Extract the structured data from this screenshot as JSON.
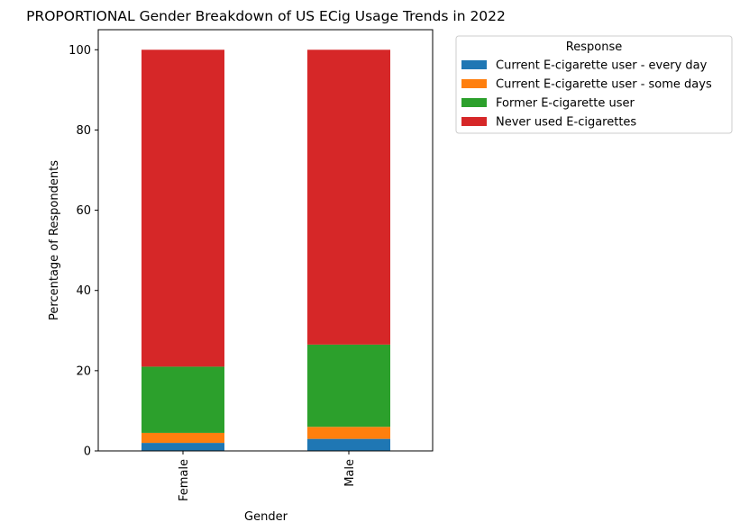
{
  "chart_data": {
    "type": "bar",
    "stacked": true,
    "title": "PROPORTIONAL Gender Breakdown of US ECig Usage Trends in 2022",
    "xlabel": "Gender",
    "ylabel": "Percentage of Respondents",
    "categories": [
      "Female",
      "Male"
    ],
    "ylim": [
      0,
      105
    ],
    "yticks": [
      0,
      20,
      40,
      60,
      80,
      100
    ],
    "grid": false,
    "legend_title": "Response",
    "legend_position": "outside-top-right",
    "series": [
      {
        "name": "Current E-cigarette user - every day",
        "color": "#1f77b4",
        "values": [
          2.0,
          3.0
        ]
      },
      {
        "name": "Current E-cigarette user - some days",
        "color": "#ff7f0e",
        "values": [
          2.5,
          3.0
        ]
      },
      {
        "name": "Former E-cigarette user",
        "color": "#2ca02c",
        "values": [
          16.5,
          20.5
        ]
      },
      {
        "name": "Never used E-cigarettes",
        "color": "#d62728",
        "values": [
          79.0,
          73.5
        ]
      }
    ]
  }
}
